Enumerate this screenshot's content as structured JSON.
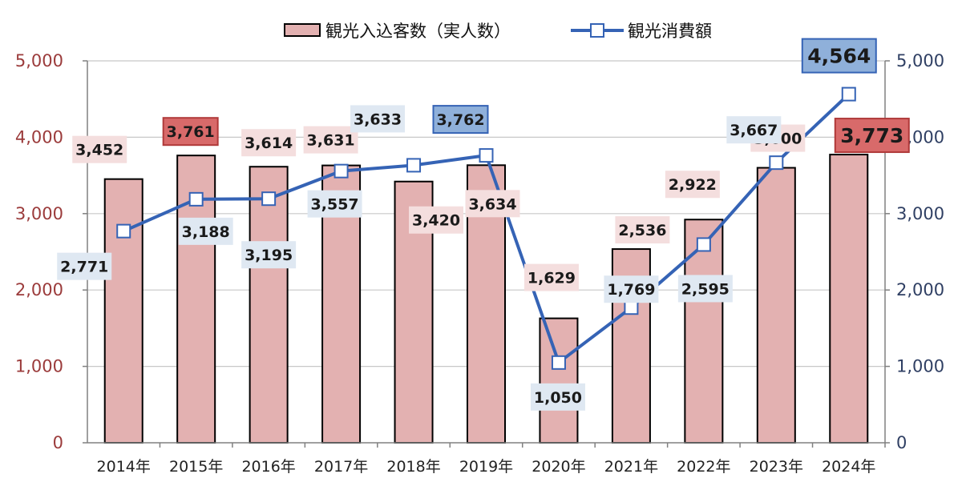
{
  "chart_data": {
    "type": "bar+line",
    "categories": [
      "2014年",
      "2015年",
      "2016年",
      "2017年",
      "2018年",
      "2019年",
      "2020年",
      "2021年",
      "2022年",
      "2023年",
      "2024年"
    ],
    "series": [
      {
        "name": "観光入込客数（実人数）",
        "type": "bar",
        "axis": "left",
        "values": [
          3452,
          3761,
          3614,
          3631,
          3420,
          3634,
          1629,
          2536,
          2922,
          3600,
          3773
        ],
        "labels": [
          "3,452",
          "3,761",
          "3,614",
          "3,631",
          "3,420",
          "3,634",
          "1,629",
          "2,536",
          "2,922",
          "3,600",
          "3,773"
        ],
        "highlight_index": [
          1,
          10
        ]
      },
      {
        "name": "観光消費額",
        "type": "line",
        "axis": "right",
        "values": [
          2771,
          3188,
          3195,
          3557,
          3633,
          3762,
          1050,
          1769,
          2595,
          3667,
          4564
        ],
        "labels": [
          "2,771",
          "3,188",
          "3,195",
          "3,557",
          "3,633",
          "3,762",
          "1,050",
          "1,769",
          "2,595",
          "3,667",
          "4,564"
        ],
        "highlight_index": [
          5,
          10
        ]
      }
    ],
    "y_left": {
      "min": 0,
      "max": 5000,
      "ticks": [
        "0",
        "1,000",
        "2,000",
        "3,000",
        "4,000",
        "5,000"
      ]
    },
    "y_right": {
      "min": 0,
      "max": 5000,
      "ticks": [
        "0",
        "1,000",
        "2,000",
        "3,000",
        "4,000",
        "5,000"
      ]
    },
    "grid": true,
    "legend_position": "top-center",
    "colors": {
      "bar_fill": "#e3b1b1",
      "bar_stroke": "#000000",
      "line": "#3563b5",
      "marker_fill": "#ffffff",
      "grid": "#c8c8c8",
      "axis": "#808080",
      "bar_label_bg": "#f4dede",
      "line_label_bg": "#dfe8f2",
      "bar_highlight_bg": "#d86a6a",
      "bar_highlight_border": "#b03a3a",
      "line_highlight_bg": "#8fb0da",
      "line_highlight_border": "#3563b5"
    }
  }
}
